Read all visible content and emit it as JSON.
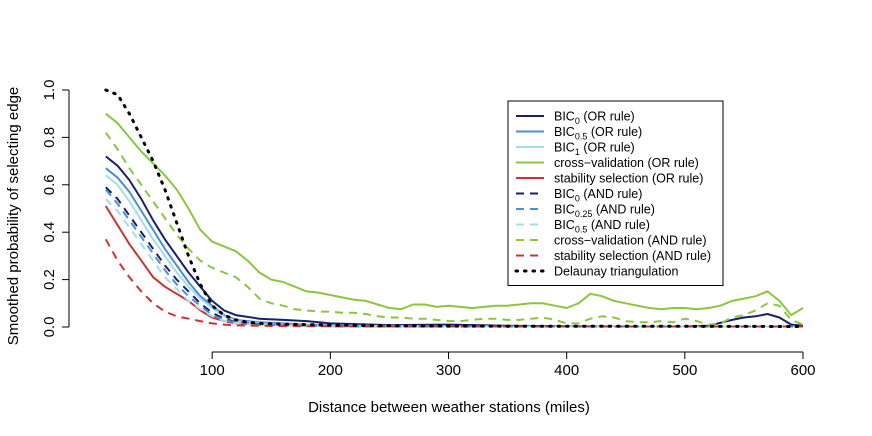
{
  "chart_data": {
    "type": "line",
    "title": "",
    "xlabel": "Distance between weather stations (miles)",
    "ylabel": "Smoothed probability of selecting edge",
    "xlim": [
      0,
      600
    ],
    "ylim": [
      0,
      1.0
    ],
    "xticks": [
      100,
      200,
      300,
      400,
      500,
      600
    ],
    "yticks": [
      0.0,
      0.2,
      0.4,
      0.6,
      0.8,
      1.0
    ],
    "xtick_labels": [
      "100",
      "200",
      "300",
      "400",
      "500",
      "600"
    ],
    "ytick_labels": [
      "0.0",
      "0.2",
      "0.4",
      "0.6",
      "0.8",
      "1.0"
    ],
    "grid": false,
    "legend_position": "top-right",
    "series": [
      {
        "name_base": "BIC",
        "name_sub": "0",
        "name_suffix": " (OR rule)",
        "color": "#1a1f6b",
        "dash": "solid",
        "x": [
          10,
          20,
          30,
          40,
          50,
          60,
          70,
          80,
          90,
          100,
          110,
          120,
          140,
          160,
          180,
          200,
          250,
          300,
          350,
          400,
          450,
          500,
          520,
          540,
          550,
          560,
          570,
          580,
          590,
          600
        ],
        "y": [
          0.72,
          0.68,
          0.62,
          0.54,
          0.45,
          0.37,
          0.3,
          0.23,
          0.17,
          0.11,
          0.07,
          0.05,
          0.035,
          0.03,
          0.025,
          0.015,
          0.008,
          0.01,
          0.005,
          0.003,
          0.002,
          0.002,
          0.005,
          0.03,
          0.04,
          0.045,
          0.055,
          0.04,
          0.01,
          0.005
        ]
      },
      {
        "name_base": "BIC",
        "name_sub": "0.5",
        "name_suffix": " (OR rule)",
        "color": "#4a8fd1",
        "dash": "solid",
        "x": [
          10,
          20,
          30,
          40,
          50,
          60,
          70,
          80,
          90,
          100,
          110,
          120,
          140,
          160,
          180,
          200,
          250,
          300,
          400,
          500,
          600
        ],
        "y": [
          0.67,
          0.63,
          0.57,
          0.49,
          0.41,
          0.33,
          0.26,
          0.19,
          0.13,
          0.09,
          0.05,
          0.03,
          0.02,
          0.015,
          0.01,
          0.008,
          0.005,
          0.003,
          0.002,
          0.002,
          0.002
        ]
      },
      {
        "name_base": "BIC",
        "name_sub": "1",
        "name_suffix": " (OR rule)",
        "color": "#a6dcea",
        "dash": "solid",
        "x": [
          10,
          20,
          30,
          40,
          50,
          60,
          70,
          80,
          90,
          100,
          110,
          120,
          140,
          160,
          180,
          200,
          250,
          300,
          400,
          500,
          600
        ],
        "y": [
          0.64,
          0.6,
          0.53,
          0.45,
          0.37,
          0.3,
          0.23,
          0.17,
          0.12,
          0.08,
          0.045,
          0.025,
          0.015,
          0.01,
          0.008,
          0.005,
          0.003,
          0.002,
          0.002,
          0.002,
          0.002
        ]
      },
      {
        "name_base": "cross−validation",
        "name_sub": "",
        "name_suffix": " (OR rule)",
        "color": "#8cc63f",
        "dash": "solid",
        "x": [
          10,
          20,
          30,
          40,
          50,
          60,
          70,
          80,
          90,
          100,
          110,
          120,
          130,
          140,
          150,
          160,
          170,
          180,
          190,
          200,
          210,
          220,
          230,
          240,
          250,
          260,
          270,
          280,
          290,
          300,
          310,
          320,
          330,
          340,
          350,
          360,
          370,
          380,
          390,
          400,
          410,
          420,
          430,
          440,
          450,
          460,
          470,
          480,
          490,
          500,
          510,
          520,
          530,
          540,
          550,
          560,
          570,
          580,
          590,
          600
        ],
        "y": [
          0.9,
          0.86,
          0.8,
          0.74,
          0.69,
          0.64,
          0.58,
          0.5,
          0.41,
          0.36,
          0.34,
          0.32,
          0.28,
          0.23,
          0.2,
          0.19,
          0.17,
          0.15,
          0.145,
          0.135,
          0.125,
          0.115,
          0.11,
          0.095,
          0.08,
          0.075,
          0.095,
          0.095,
          0.085,
          0.09,
          0.085,
          0.08,
          0.085,
          0.09,
          0.09,
          0.095,
          0.1,
          0.1,
          0.09,
          0.08,
          0.1,
          0.14,
          0.13,
          0.11,
          0.1,
          0.09,
          0.08,
          0.075,
          0.08,
          0.08,
          0.075,
          0.08,
          0.09,
          0.11,
          0.12,
          0.13,
          0.15,
          0.11,
          0.05,
          0.08
        ]
      },
      {
        "name_base": "stability selection",
        "name_sub": "",
        "name_suffix": " (OR rule)",
        "color": "#d03030",
        "dash": "solid",
        "x": [
          10,
          20,
          30,
          40,
          50,
          60,
          70,
          80,
          90,
          100,
          110,
          120,
          140,
          160,
          180,
          200,
          250,
          300,
          400,
          500,
          600
        ],
        "y": [
          0.51,
          0.43,
          0.35,
          0.28,
          0.21,
          0.17,
          0.14,
          0.11,
          0.07,
          0.04,
          0.025,
          0.015,
          0.01,
          0.008,
          0.005,
          0.004,
          0.003,
          0.002,
          0.002,
          0.002,
          0.002
        ]
      },
      {
        "name_base": "BIC",
        "name_sub": "0",
        "name_suffix": " (AND rule)",
        "color": "#1a1f6b",
        "dash": "dashed",
        "x": [
          10,
          20,
          30,
          40,
          50,
          60,
          70,
          80,
          90,
          100,
          110,
          120,
          140,
          160,
          180,
          200,
          250,
          300,
          400,
          500,
          600
        ],
        "y": [
          0.59,
          0.54,
          0.47,
          0.4,
          0.33,
          0.26,
          0.2,
          0.15,
          0.1,
          0.06,
          0.035,
          0.02,
          0.012,
          0.008,
          0.006,
          0.004,
          0.003,
          0.002,
          0.002,
          0.002,
          0.002
        ]
      },
      {
        "name_base": "BIC",
        "name_sub": "0.25",
        "name_suffix": " (AND rule)",
        "color": "#4a8fd1",
        "dash": "dashed",
        "x": [
          10,
          20,
          30,
          40,
          50,
          60,
          70,
          80,
          90,
          100,
          110,
          120,
          140,
          160,
          180,
          200,
          250,
          300,
          400,
          500,
          600
        ],
        "y": [
          0.58,
          0.52,
          0.45,
          0.38,
          0.31,
          0.24,
          0.18,
          0.13,
          0.09,
          0.05,
          0.03,
          0.018,
          0.01,
          0.007,
          0.005,
          0.004,
          0.003,
          0.002,
          0.002,
          0.002,
          0.002
        ]
      },
      {
        "name_base": "BIC",
        "name_sub": "0.5",
        "name_suffix": " (AND rule)",
        "color": "#a6dcea",
        "dash": "dashed",
        "x": [
          10,
          20,
          30,
          40,
          50,
          60,
          70,
          80,
          90,
          100,
          110,
          120,
          140,
          160,
          180,
          200,
          250,
          300,
          400,
          500,
          600
        ],
        "y": [
          0.54,
          0.49,
          0.42,
          0.35,
          0.28,
          0.21,
          0.16,
          0.11,
          0.075,
          0.045,
          0.025,
          0.015,
          0.009,
          0.006,
          0.005,
          0.004,
          0.003,
          0.002,
          0.002,
          0.002,
          0.002
        ]
      },
      {
        "name_base": "cross−validation",
        "name_sub": "",
        "name_suffix": " (AND rule)",
        "color": "#8cc63f",
        "dash": "dashed",
        "x": [
          10,
          20,
          30,
          40,
          50,
          60,
          70,
          80,
          90,
          100,
          110,
          120,
          130,
          140,
          150,
          160,
          170,
          180,
          190,
          200,
          210,
          220,
          230,
          240,
          250,
          260,
          270,
          280,
          290,
          300,
          310,
          320,
          330,
          340,
          350,
          360,
          370,
          380,
          390,
          400,
          410,
          420,
          430,
          440,
          450,
          460,
          470,
          480,
          490,
          500,
          510,
          520,
          530,
          540,
          550,
          560,
          570,
          580,
          590,
          600
        ],
        "y": [
          0.82,
          0.75,
          0.67,
          0.6,
          0.53,
          0.46,
          0.39,
          0.33,
          0.28,
          0.25,
          0.23,
          0.21,
          0.17,
          0.12,
          0.1,
          0.09,
          0.075,
          0.07,
          0.065,
          0.065,
          0.06,
          0.06,
          0.055,
          0.045,
          0.04,
          0.04,
          0.035,
          0.035,
          0.03,
          0.025,
          0.025,
          0.03,
          0.035,
          0.035,
          0.03,
          0.03,
          0.035,
          0.04,
          0.03,
          0.015,
          0.015,
          0.035,
          0.045,
          0.04,
          0.025,
          0.02,
          0.02,
          0.025,
          0.02,
          0.035,
          0.025,
          0.01,
          0.015,
          0.04,
          0.05,
          0.07,
          0.1,
          0.09,
          0.03,
          0.01
        ]
      },
      {
        "name_base": "stability selection",
        "name_sub": "",
        "name_suffix": " (AND rule)",
        "color": "#d03030",
        "dash": "dashed",
        "x": [
          10,
          20,
          30,
          40,
          50,
          60,
          70,
          80,
          90,
          100,
          110,
          120,
          140,
          160,
          180,
          200,
          250,
          300,
          400,
          500,
          600
        ],
        "y": [
          0.37,
          0.28,
          0.21,
          0.15,
          0.1,
          0.065,
          0.045,
          0.035,
          0.025,
          0.015,
          0.01,
          0.007,
          0.005,
          0.004,
          0.003,
          0.003,
          0.002,
          0.002,
          0.002,
          0.002,
          0.002
        ]
      },
      {
        "name_base": "Delaunay triangulation",
        "name_sub": "",
        "name_suffix": "",
        "color": "#000000",
        "dash": "dotted",
        "x": [
          10,
          20,
          30,
          40,
          50,
          60,
          70,
          80,
          90,
          100,
          110,
          120,
          130,
          140,
          160,
          180,
          200,
          250,
          300,
          400,
          500,
          600
        ],
        "y": [
          1.0,
          0.98,
          0.9,
          0.8,
          0.7,
          0.58,
          0.44,
          0.3,
          0.18,
          0.09,
          0.05,
          0.03,
          0.02,
          0.015,
          0.012,
          0.01,
          0.008,
          0.005,
          0.004,
          0.003,
          0.003,
          0.002
        ]
      }
    ]
  }
}
